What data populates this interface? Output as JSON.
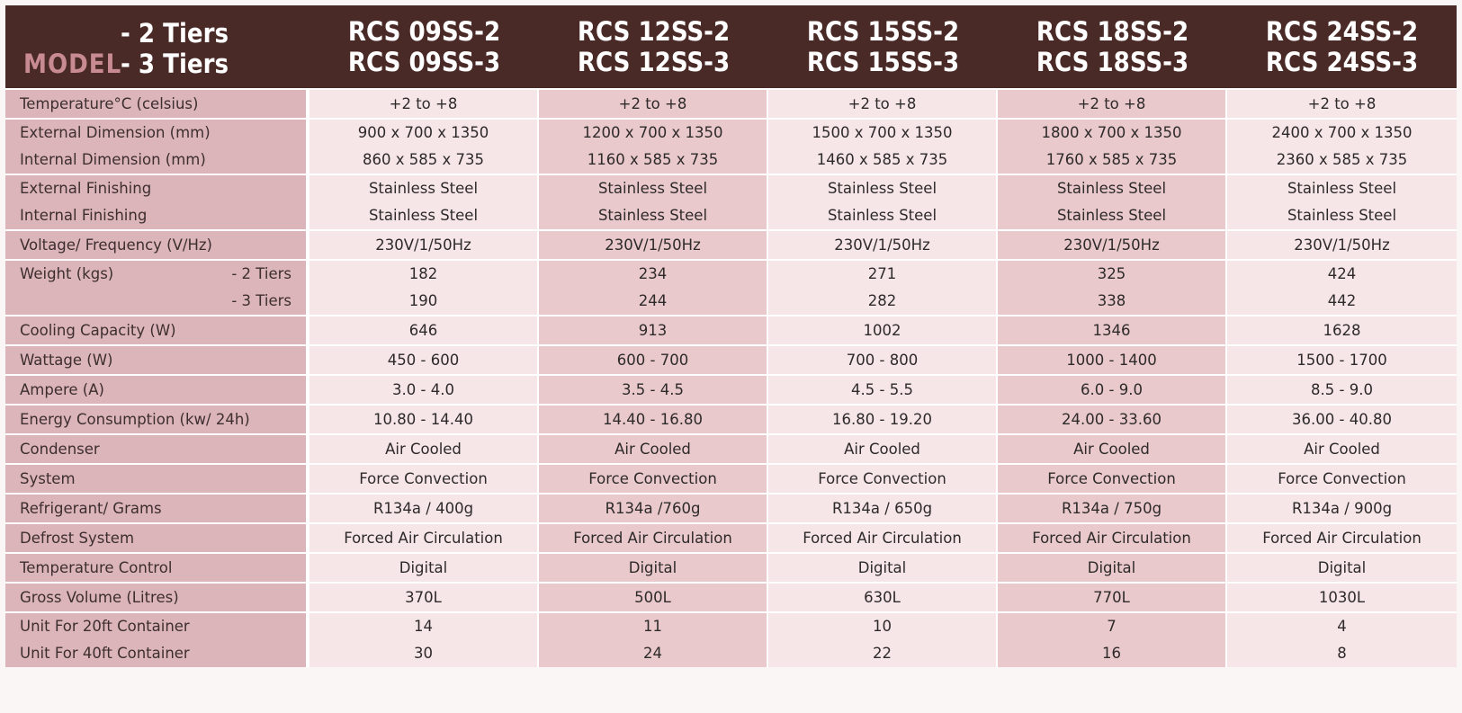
{
  "header": {
    "tier_2": "- 2 Tiers",
    "tier_3": "- 3 Tiers",
    "model_word": "MODEL",
    "models": [
      {
        "line1": "RCS 09SS-2",
        "line2": "RCS 09SS-3"
      },
      {
        "line1": "RCS 12SS-2",
        "line2": "RCS 12SS-3"
      },
      {
        "line1": "RCS 15SS-2",
        "line2": "RCS 15SS-3"
      },
      {
        "line1": "RCS 18SS-2",
        "line2": "RCS 18SS-3"
      },
      {
        "line1": "RCS 24SS-2",
        "line2": "RCS 24SS-3"
      }
    ]
  },
  "rows": {
    "temperature": {
      "label": "Temperature°C (celsius)",
      "values": [
        "+2 to +8",
        "+2 to +8",
        "+2 to +8",
        "+2 to +8",
        "+2 to +8"
      ]
    },
    "dimension": {
      "label1": "External Dimension (mm)",
      "label2": "Internal Dimension (mm)",
      "values1": [
        "900 x 700 x 1350",
        "1200 x 700 x 1350",
        "1500 x 700 x 1350",
        "1800 x 700 x 1350",
        "2400 x 700 x 1350"
      ],
      "values2": [
        "860 x 585 x 735",
        "1160 x 585 x 735",
        "1460 x 585 x 735",
        "1760 x 585 x 735",
        "2360 x 585 x 735"
      ]
    },
    "finishing": {
      "label1": "External Finishing",
      "label2": "Internal Finishing",
      "values1": [
        "Stainless Steel",
        "Stainless Steel",
        "Stainless Steel",
        "Stainless Steel",
        "Stainless Steel"
      ],
      "values2": [
        "Stainless Steel",
        "Stainless Steel",
        "Stainless Steel",
        "Stainless Steel",
        "Stainless Steel"
      ]
    },
    "voltage": {
      "label": "Voltage/ Frequency (V/Hz)",
      "values": [
        "230V/1/50Hz",
        "230V/1/50Hz",
        "230V/1/50Hz",
        "230V/1/50Hz",
        "230V/1/50Hz"
      ]
    },
    "weight": {
      "label": "Weight (kgs)",
      "sub1": "- 2 Tiers",
      "sub2": "- 3 Tiers",
      "values1": [
        "182",
        "234",
        "271",
        "325",
        "424"
      ],
      "values2": [
        "190",
        "244",
        "282",
        "338",
        "442"
      ]
    },
    "cooling": {
      "label": "Cooling Capacity (W)",
      "values": [
        "646",
        "913",
        "1002",
        "1346",
        "1628"
      ]
    },
    "wattage": {
      "label": "Wattage (W)",
      "values": [
        "450 - 600",
        "600 - 700",
        "700 - 800",
        "1000 - 1400",
        "1500 - 1700"
      ]
    },
    "ampere": {
      "label": "Ampere (A)",
      "values": [
        "3.0 - 4.0",
        "3.5 - 4.5",
        "4.5 - 5.5",
        "6.0 - 9.0",
        "8.5 - 9.0"
      ]
    },
    "energy": {
      "label": "Energy Consumption (kw/ 24h)",
      "values": [
        "10.80 - 14.40",
        "14.40 - 16.80",
        "16.80 - 19.20",
        "24.00 - 33.60",
        "36.00 - 40.80"
      ]
    },
    "condenser": {
      "label": "Condenser",
      "values": [
        "Air Cooled",
        "Air Cooled",
        "Air Cooled",
        "Air Cooled",
        "Air Cooled"
      ]
    },
    "system": {
      "label": "System",
      "values": [
        "Force Convection",
        "Force Convection",
        "Force Convection",
        "Force Convection",
        "Force Convection"
      ]
    },
    "refrigerant": {
      "label": "Refrigerant/ Grams",
      "values": [
        "R134a / 400g",
        "R134a /760g",
        "R134a / 650g",
        "R134a / 750g",
        "R134a / 900g"
      ]
    },
    "defrost": {
      "label": "Defrost System",
      "values": [
        "Forced Air Circulation",
        "Forced Air Circulation",
        "Forced Air Circulation",
        "Forced Air Circulation",
        "Forced Air Circulation"
      ]
    },
    "temp_control": {
      "label": "Temperature Control",
      "values": [
        "Digital",
        "Digital",
        "Digital",
        "Digital",
        "Digital"
      ]
    },
    "gross_volume": {
      "label": "Gross Volume (Litres)",
      "values": [
        "370L",
        "500L",
        "630L",
        "770L",
        "1030L"
      ]
    },
    "container": {
      "label1": "Unit For 20ft Container",
      "label2": "Unit For 40ft Container",
      "values1": [
        "14",
        "11",
        "10",
        "7",
        "4"
      ],
      "values2": [
        "30",
        "24",
        "22",
        "16",
        "8"
      ]
    }
  }
}
